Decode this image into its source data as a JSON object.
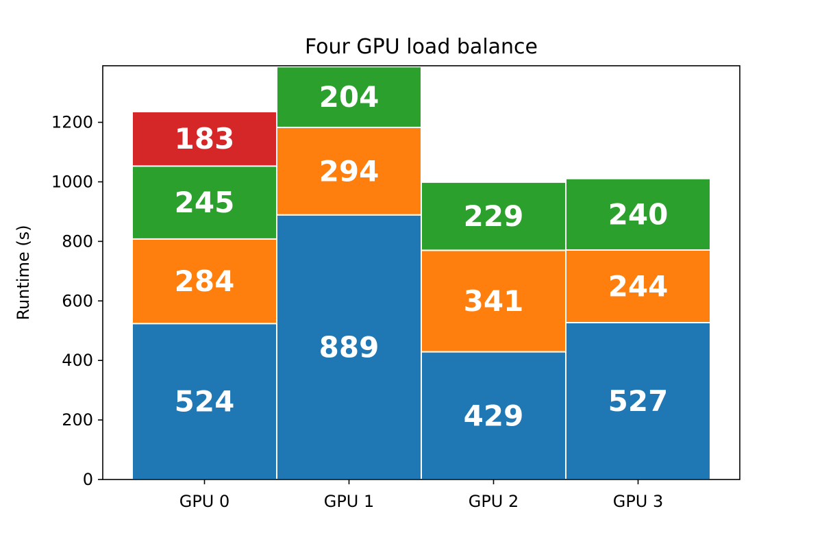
{
  "chart_data": {
    "type": "bar",
    "stacked": true,
    "title": "Four GPU  load balance",
    "xlabel": "",
    "ylabel": "Runtime (s)",
    "categories": [
      "GPU 0",
      "GPU 1",
      "GPU 2",
      "GPU 3"
    ],
    "ylim": [
      0,
      1390
    ],
    "yticks": [
      0,
      200,
      400,
      600,
      800,
      1000,
      1200
    ],
    "grid": false,
    "stacks": [
      {
        "segments": [
          {
            "value": 524,
            "color": "#1f77b4"
          },
          {
            "value": 284,
            "color": "#ff7f0e"
          },
          {
            "value": 245,
            "color": "#2ca02c"
          },
          {
            "value": 183,
            "color": "#d62728"
          }
        ]
      },
      {
        "segments": [
          {
            "value": 889,
            "color": "#1f77b4"
          },
          {
            "value": 294,
            "color": "#ff7f0e"
          },
          {
            "value": 204,
            "color": "#2ca02c"
          }
        ]
      },
      {
        "segments": [
          {
            "value": 429,
            "color": "#1f77b4"
          },
          {
            "value": 341,
            "color": "#ff7f0e"
          },
          {
            "value": 229,
            "color": "#2ca02c"
          }
        ]
      },
      {
        "segments": [
          {
            "value": 527,
            "color": "#1f77b4"
          },
          {
            "value": 244,
            "color": "#ff7f0e"
          },
          {
            "value": 240,
            "color": "#2ca02c"
          }
        ]
      }
    ]
  }
}
